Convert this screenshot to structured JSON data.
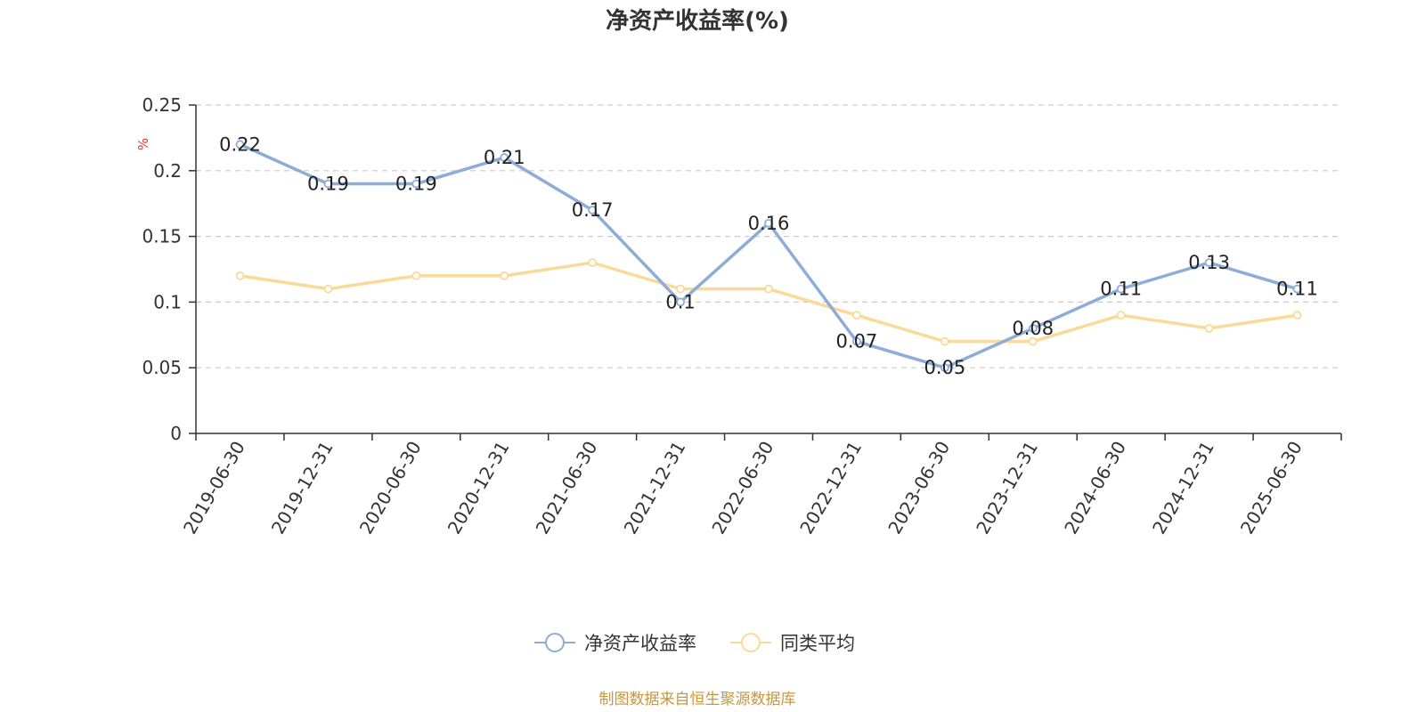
{
  "chart_data": {
    "type": "line",
    "title": "净资产收益率(%)",
    "ylabel": "%",
    "xlabel": "",
    "categories": [
      "2019-06-30",
      "2019-12-31",
      "2020-06-30",
      "2020-12-31",
      "2021-06-30",
      "2021-12-31",
      "2022-06-30",
      "2022-12-31",
      "2023-06-30",
      "2023-12-31",
      "2024-06-30",
      "2024-12-31",
      "2025-06-30"
    ],
    "ylim": [
      0,
      0.25
    ],
    "yticks": [
      0,
      0.05,
      0.1,
      0.15,
      0.2,
      0.25
    ],
    "ytick_labels": [
      "0",
      "0.05",
      "0.1",
      "0.15",
      "0.2",
      "0.25"
    ],
    "grid": true,
    "legend_position": "bottom",
    "series": [
      {
        "name": "净资产收益率",
        "color": "#8eacd8",
        "values": [
          0.22,
          0.19,
          0.19,
          0.21,
          0.17,
          0.1,
          0.16,
          0.07,
          0.05,
          0.08,
          0.11,
          0.13,
          0.11
        ],
        "value_labels": [
          "0.22",
          "0.19",
          "0.19",
          "0.21",
          "0.17",
          "0.1",
          "0.16",
          "0.07",
          "0.05",
          "0.08",
          "0.11",
          "0.13",
          "0.11"
        ],
        "show_labels": true
      },
      {
        "name": "同类平均",
        "color": "#fbd999",
        "values": [
          0.12,
          0.11,
          0.12,
          0.12,
          0.13,
          0.11,
          0.11,
          0.09,
          0.07,
          0.07,
          0.09,
          0.08,
          0.09
        ],
        "show_labels": false
      }
    ]
  },
  "colors": {
    "unit_label": "#e8322b",
    "source": "#c8963e",
    "axis": "#333333",
    "grid": "#cccccc"
  },
  "source": "制图数据来自恒生聚源数据库"
}
